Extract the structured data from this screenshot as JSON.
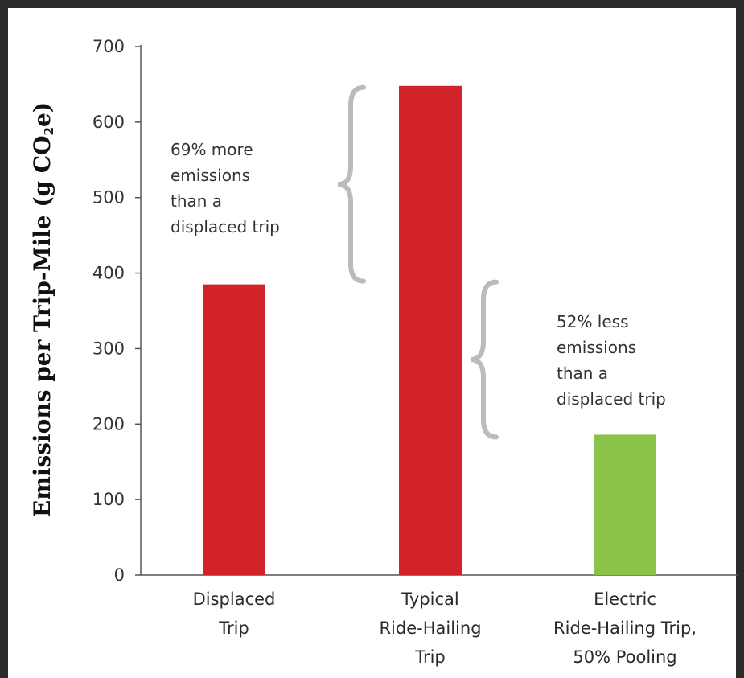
{
  "chart_data": {
    "type": "bar",
    "categories": [
      [
        "Displaced",
        "Trip"
      ],
      [
        "Typical",
        "Ride-Hailing",
        "Trip"
      ],
      [
        "Electric",
        "Ride-Hailing Trip,",
        "50% Pooling"
      ]
    ],
    "values": [
      385,
      648,
      186
    ],
    "ylabel_main": "Emissions per Trip-Mile (g CO",
    "ylabel_sub": "2",
    "ylabel_end": "e)",
    "ylim": [
      0,
      700
    ],
    "yticks": [
      0,
      100,
      200,
      300,
      400,
      500,
      600,
      700
    ],
    "grid": false,
    "colors": [
      "#d2232a",
      "#d2232a",
      "#8bc34a"
    ],
    "annotations": [
      {
        "lines": [
          "69% more",
          "emissions",
          "than a",
          "displaced trip"
        ],
        "bracket_from": 385,
        "bracket_to": 648
      },
      {
        "lines": [
          "52% less",
          "emissions",
          "than a",
          "displaced trip"
        ],
        "bracket_from": 186,
        "bracket_to": 385
      }
    ]
  }
}
